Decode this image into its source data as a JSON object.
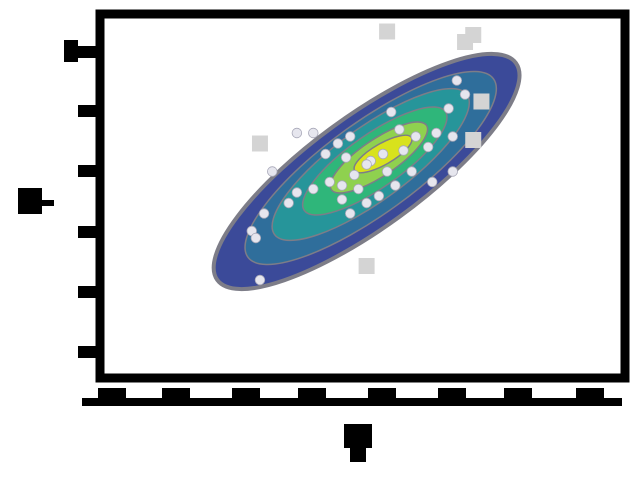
{
  "chart_data": {
    "type": "scatter",
    "subtype": "kde-contour-with-points",
    "title": "",
    "xlabel": "",
    "ylabel": "",
    "xlim": [
      -3.2,
      3.2
    ],
    "ylim": [
      -2.6,
      2.6
    ],
    "xticks": [],
    "yticks": [],
    "grid": false,
    "colormap": [
      "#3b4a99",
      "#2f6e9b",
      "#26959a",
      "#2fb67a",
      "#8fd14f",
      "#d8e21c"
    ],
    "contour_levels": [
      {
        "cx": 0.05,
        "cy": 0.35,
        "rx": 2.25,
        "ry": 0.8,
        "angle_deg": 36,
        "color": "#3b4a99"
      },
      {
        "cx": 0.1,
        "cy": 0.4,
        "rx": 1.85,
        "ry": 0.65,
        "angle_deg": 36,
        "color": "#2f6e9b"
      },
      {
        "cx": 0.1,
        "cy": 0.45,
        "rx": 1.45,
        "ry": 0.52,
        "angle_deg": 36,
        "color": "#26959a"
      },
      {
        "cx": 0.15,
        "cy": 0.5,
        "rx": 1.05,
        "ry": 0.38,
        "angle_deg": 35,
        "color": "#2fb67a"
      },
      {
        "cx": 0.2,
        "cy": 0.55,
        "rx": 0.7,
        "ry": 0.26,
        "angle_deg": 34,
        "color": "#8fd14f"
      },
      {
        "cx": 0.25,
        "cy": 0.6,
        "rx": 0.4,
        "ry": 0.15,
        "angle_deg": 30,
        "color": "#d8e21c"
      }
    ],
    "points": [
      {
        "x": 1.15,
        "y": 1.65
      },
      {
        "x": 1.25,
        "y": 1.45
      },
      {
        "x": 1.05,
        "y": 1.25
      },
      {
        "x": 0.35,
        "y": 1.2
      },
      {
        "x": 0.45,
        "y": 0.95
      },
      {
        "x": 0.65,
        "y": 0.85
      },
      {
        "x": 0.9,
        "y": 0.9
      },
      {
        "x": 1.1,
        "y": 0.85
      },
      {
        "x": 0.8,
        "y": 0.7
      },
      {
        "x": 0.5,
        "y": 0.65
      },
      {
        "x": 0.25,
        "y": 0.6
      },
      {
        "x": 0.1,
        "y": 0.5
      },
      {
        "x": -0.15,
        "y": 0.85
      },
      {
        "x": -0.6,
        "y": 0.9
      },
      {
        "x": -0.3,
        "y": 0.75
      },
      {
        "x": -0.45,
        "y": 0.6
      },
      {
        "x": -0.2,
        "y": 0.55
      },
      {
        "x": 0.05,
        "y": 0.45
      },
      {
        "x": 0.3,
        "y": 0.35
      },
      {
        "x": -0.1,
        "y": 0.3
      },
      {
        "x": -0.4,
        "y": 0.2
      },
      {
        "x": -0.25,
        "y": 0.15
      },
      {
        "x": -0.05,
        "y": 0.1
      },
      {
        "x": 0.2,
        "y": 0.0
      },
      {
        "x": -0.6,
        "y": 0.1
      },
      {
        "x": -0.8,
        "y": 0.05
      },
      {
        "x": -1.1,
        "y": 0.35
      },
      {
        "x": -0.9,
        "y": -0.1
      },
      {
        "x": -1.2,
        "y": -0.25
      },
      {
        "x": -1.35,
        "y": -0.5
      },
      {
        "x": -1.3,
        "y": -0.6
      },
      {
        "x": -0.25,
        "y": -0.05
      },
      {
        "x": -0.15,
        "y": -0.25
      },
      {
        "x": 0.05,
        "y": -0.1
      },
      {
        "x": 1.1,
        "y": 0.35
      },
      {
        "x": 0.85,
        "y": 0.2
      },
      {
        "x": -1.25,
        "y": -1.2
      },
      {
        "x": -0.8,
        "y": 0.9
      },
      {
        "x": 0.6,
        "y": 0.35
      },
      {
        "x": 0.4,
        "y": 0.15
      }
    ],
    "outliers": [
      {
        "x": 0.3,
        "y": 2.35
      },
      {
        "x": 1.25,
        "y": 2.2
      },
      {
        "x": 1.35,
        "y": 2.3
      },
      {
        "x": 1.45,
        "y": 1.35
      },
      {
        "x": 1.35,
        "y": 0.8
      },
      {
        "x": 0.05,
        "y": -1.0
      },
      {
        "x": -1.25,
        "y": 0.75
      }
    ]
  }
}
